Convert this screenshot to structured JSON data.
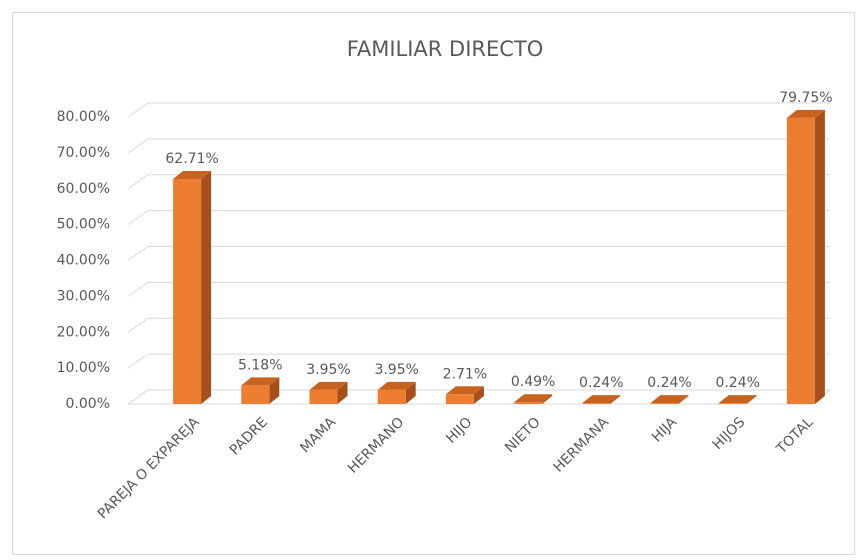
{
  "chart_data": {
    "type": "bar3d",
    "title": "FAMILIAR DIRECTO",
    "categories": [
      "PAREJA O EXPAREJA",
      "PADRE",
      "MAMA",
      "HERMANO",
      "HIJO",
      "NIETO",
      "HERMANA",
      "HIJA",
      "HIJOS",
      "TOTAL"
    ],
    "values": [
      62.71,
      5.18,
      3.95,
      3.95,
      2.71,
      0.49,
      0.24,
      0.24,
      0.24,
      79.75
    ],
    "value_labels": [
      "62.71%",
      "5.18%",
      "3.95%",
      "3.95%",
      "2.71%",
      "0.49%",
      "0.24%",
      "0.24%",
      "0.24%",
      "79.75%"
    ],
    "color": "#ED7D31",
    "ylim": [
      0,
      80
    ],
    "yticks": [
      {
        "value": 0,
        "label": "0.00%"
      },
      {
        "value": 10,
        "label": "10.00%"
      },
      {
        "value": 20,
        "label": "20.00%"
      },
      {
        "value": 30,
        "label": "30.00%"
      },
      {
        "value": 40,
        "label": "40.00%"
      },
      {
        "value": 50,
        "label": "50.00%"
      },
      {
        "value": 60,
        "label": "60.00%"
      },
      {
        "value": 70,
        "label": "70.00%"
      },
      {
        "value": 80,
        "label": "80.00%"
      }
    ],
    "grid": true
  }
}
